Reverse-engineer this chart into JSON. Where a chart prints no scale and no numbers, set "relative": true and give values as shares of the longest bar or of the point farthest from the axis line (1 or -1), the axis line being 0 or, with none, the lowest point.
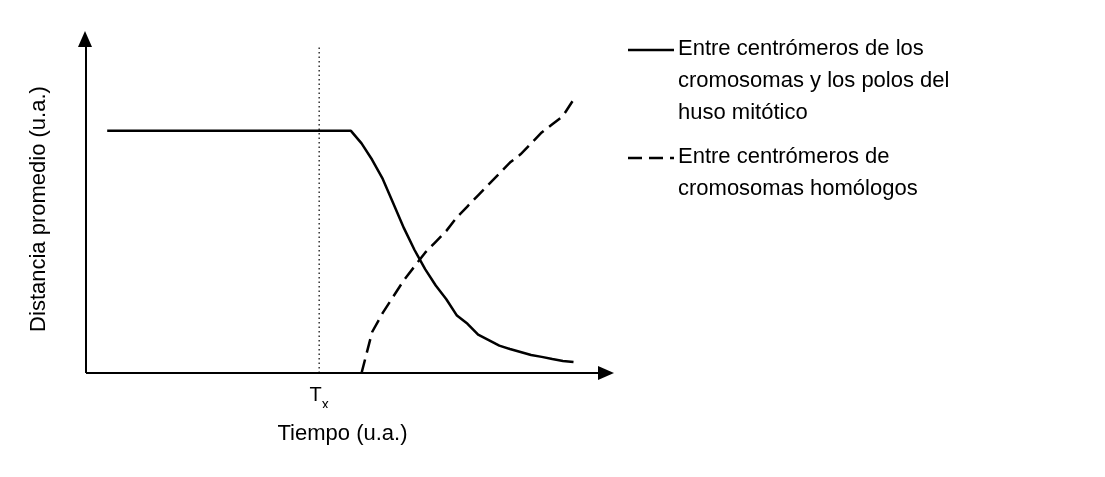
{
  "chart_data": {
    "type": "line",
    "relative": true,
    "xlabel": "Tiempo (u.a.)",
    "ylabel": "Distancia promedio (u.a.)",
    "categories": [
      null,
      null,
      null,
      null,
      null,
      null,
      null,
      null,
      null,
      null,
      null,
      null,
      null,
      null,
      null,
      null,
      null,
      null,
      null,
      null,
      null,
      null,
      null,
      null,
      null,
      null,
      null,
      null,
      null,
      null,
      null,
      null,
      null,
      null,
      null,
      null,
      null,
      null,
      null,
      null,
      null,
      null,
      null,
      null,
      null
    ],
    "annotations": [
      "T$_{x}$"
    ],
    "series": [
      {
        "name": "Entre centrómeros de los cromosomas y los polos del huso mitótico",
        "color": "#000000",
        "line_style": "solid",
        "values": [
          0.886,
          0.886,
          0.886,
          0.886,
          0.886,
          0.886,
          0.886,
          0.886,
          0.886,
          0.886,
          0.886,
          0.886,
          0.886,
          0.886,
          0.886,
          0.886,
          0.886,
          0.886,
          0.886,
          0.886,
          0.886,
          0.886,
          0.886,
          0.886,
          0.84,
          0.78,
          0.71,
          0.62,
          0.53,
          0.45,
          0.38,
          0.32,
          0.27,
          0.21,
          0.18,
          0.14,
          0.12,
          0.1,
          0.088,
          0.077,
          0.066,
          0.059,
          0.051,
          0.044,
          0.04
        ]
      },
      {
        "name": "Entre centrómeros de cromosomas homólogos",
        "color": "#000000",
        "line_style": "dashed",
        "values": [
          null,
          null,
          null,
          null,
          null,
          null,
          null,
          null,
          null,
          null,
          null,
          null,
          null,
          null,
          null,
          null,
          null,
          null,
          null,
          null,
          null,
          null,
          null,
          null,
          0,
          0.15,
          0.22,
          0.28,
          0.34,
          0.39,
          0.44,
          0.48,
          0.52,
          0.57,
          0.61,
          0.65,
          0.69,
          0.73,
          0.77,
          0.8,
          0.84,
          0.88,
          0.91,
          0.94,
          1
        ]
      }
    ],
    "legend": "right",
    "grid": false
  }
}
